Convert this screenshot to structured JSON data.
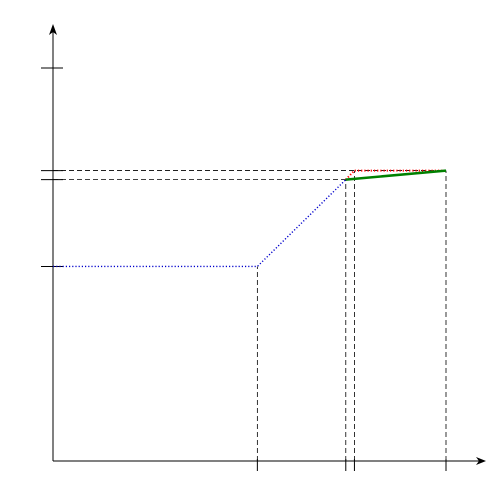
{
  "diagram": {
    "x_ticks": [
      {
        "id": "x1",
        "value": 0.52
      },
      {
        "id": "x2",
        "value": 0.745
      },
      {
        "id": "x3",
        "value": 0.767
      },
      {
        "id": "x4",
        "value": 1.0
      }
    ],
    "y_ticks": [
      {
        "id": "y_top",
        "value": 1.0
      },
      {
        "id": "y_upper1",
        "value": 0.739
      },
      {
        "id": "y_upper2",
        "value": 0.716
      },
      {
        "id": "y_lower",
        "value": 0.495
      }
    ],
    "curves": [
      {
        "id": "blue-dotted-curve",
        "color": "#0000cc",
        "style": "dotted",
        "points": [
          [
            0.0,
            0.495
          ],
          [
            0.52,
            0.495
          ],
          [
            0.745,
            0.716
          ]
        ]
      },
      {
        "id": "red-dotted-curve",
        "color": "#ff0000",
        "style": "dotted",
        "points": [
          [
            0.745,
            0.716
          ],
          [
            0.767,
            0.739
          ],
          [
            1.0,
            0.739
          ]
        ]
      },
      {
        "id": "green-solid-curve",
        "color": "#008000",
        "style": "solid",
        "points": [
          [
            0.745,
            0.716
          ],
          [
            1.0,
            0.739
          ]
        ]
      }
    ],
    "guides": [
      {
        "from": [
          0.0,
          0.739
        ],
        "to": [
          1.0,
          0.739
        ]
      },
      {
        "from": [
          0.0,
          0.716
        ],
        "to": [
          0.745,
          0.716
        ]
      },
      {
        "from": [
          0.52,
          0.0
        ],
        "to": [
          0.52,
          0.495
        ]
      },
      {
        "from": [
          0.745,
          0.0
        ],
        "to": [
          0.745,
          0.716
        ]
      },
      {
        "from": [
          0.767,
          0.0
        ],
        "to": [
          0.767,
          0.739
        ]
      },
      {
        "from": [
          1.0,
          0.0
        ],
        "to": [
          1.0,
          0.739
        ]
      }
    ]
  }
}
